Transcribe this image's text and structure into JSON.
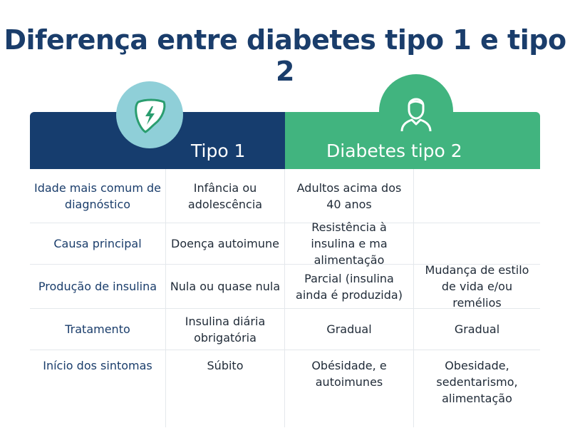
{
  "title": "Diferença entre diabetes tipo 1 e tipo 2",
  "header": {
    "left_label": "Tipo 1",
    "right_label": "Diabetes tipo 2",
    "left_icon": "liver-lightning-icon",
    "right_icon": "person-icon"
  },
  "colors": {
    "title": "#1a3d6b",
    "header_left": "#163d6e",
    "header_right": "#41b47f",
    "circle_left": "#8fcfd8"
  },
  "rows": [
    [
      "Idade mais comum de diagnóstico",
      "Infância ou adolescência",
      "Adultos acima dos 40 anos",
      ""
    ],
    [
      "Causa principal",
      "Doença autoimune",
      "Resistência à insulina e ma alimentação",
      ""
    ],
    [
      "Produção de insulina",
      "Nula ou quase nula",
      "Parcial (insulina ainda é produzida)",
      "Mudança de estilo de vida e/ou remélios"
    ],
    [
      "Tratamento",
      "Insulina diária obrigatória",
      "Gradual",
      "Gradual"
    ],
    [
      "Início dos sintomas",
      "Súbito",
      "Obésidade, e autoimunes",
      "Obesidade, sedentarismo, alimentação"
    ]
  ]
}
